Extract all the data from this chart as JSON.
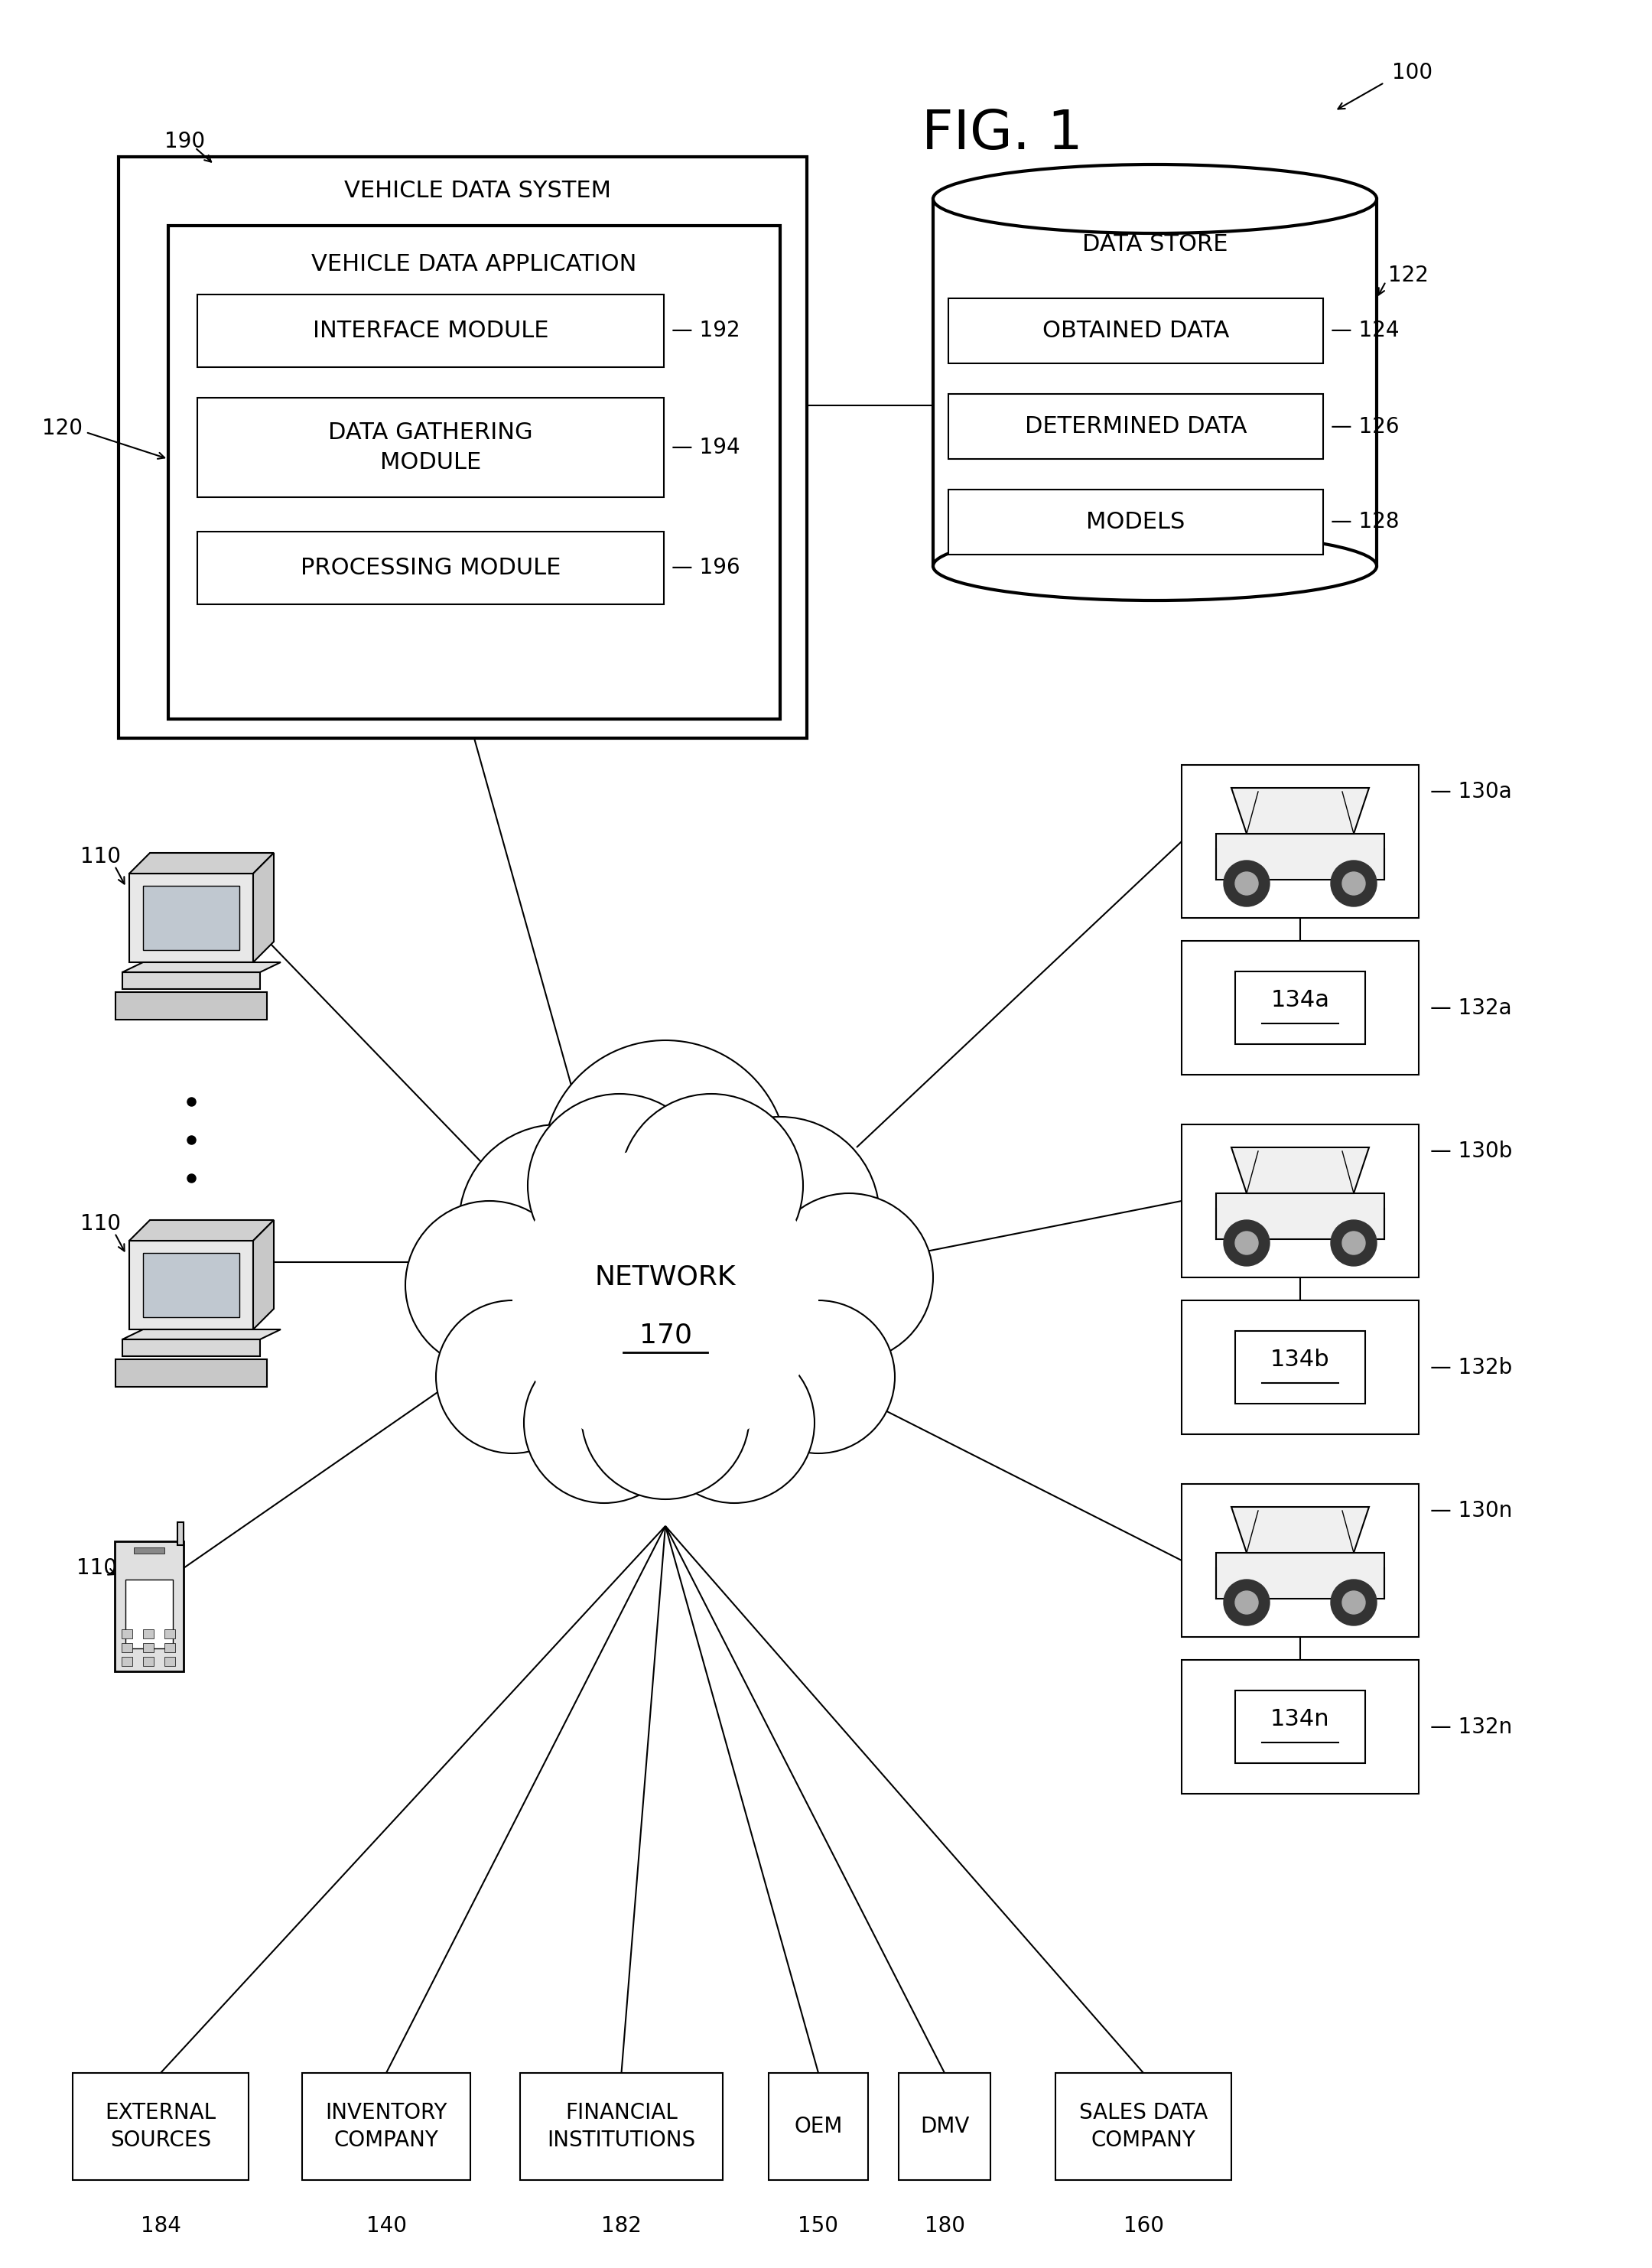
{
  "bg_color": "#ffffff",
  "fig_label": "FIG. 1",
  "ref_100": "100",
  "ref_190": "190",
  "ref_120": "120",
  "ref_192": "192",
  "ref_194": "194",
  "ref_196": "196",
  "ref_122": "122",
  "ref_124": "124",
  "ref_126": "126",
  "ref_128": "128",
  "ref_170": "170",
  "label_vds": "VEHICLE DATA SYSTEM",
  "label_vda": "VEHICLE DATA APPLICATION",
  "label_im": "INTERFACE MODULE",
  "label_dgm": "DATA GATHERING\nMODULE",
  "label_pm": "PROCESSING MODULE",
  "label_ds": "DATA STORE",
  "label_od": "OBTAINED DATA",
  "label_dd": "DETERMINED DATA",
  "label_mo": "MODELS",
  "label_net": "NETWORK",
  "vehicle_pairs": [
    {
      "car_ref": "130a",
      "device_ref": "132a",
      "label": "134a"
    },
    {
      "car_ref": "130b",
      "device_ref": "132b",
      "label": "134b"
    },
    {
      "car_ref": "130n",
      "device_ref": "132n",
      "label": "134n"
    }
  ],
  "bottom_boxes": [
    {
      "label": "EXTERNAL\nSOURCES",
      "ref": "184"
    },
    {
      "label": "INVENTORY\nCOMPANY",
      "ref": "140"
    },
    {
      "label": "FINANCIAL\nINSTITUTIONS",
      "ref": "182"
    },
    {
      "label": "OEM",
      "ref": "150"
    },
    {
      "label": "DMV",
      "ref": "180"
    },
    {
      "label": "SALES DATA\nCOMPANY",
      "ref": "160"
    }
  ]
}
